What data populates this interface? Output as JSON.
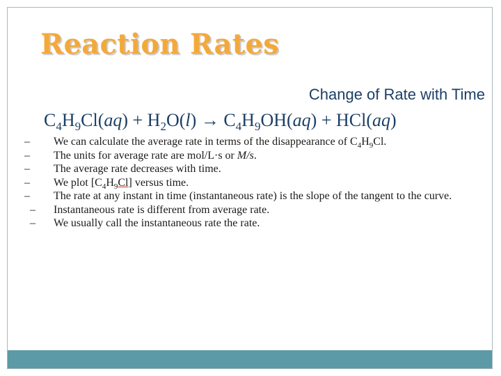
{
  "title": "Reaction Rates",
  "subtitle": "Change of Rate with Time",
  "equation": {
    "r_c": "C",
    "r_c_n": "4",
    "r_h": "H",
    "r_h_n": "9",
    "r_cl": "Cl(",
    "r_cl_st": "aq",
    "r_cl_end": ") + H",
    "w_n": "2",
    "w_o": "O(",
    "w_st": "l",
    "w_end": ") ",
    "arrow": "→",
    "p_c": " C",
    "p_c_n": "4",
    "p_h": "H",
    "p_h_n": "9",
    "p_oh": "OH(",
    "p_oh_st": "aq",
    "p_oh_end": ") + HCl(",
    "p_hcl_st": "aq",
    "p_hcl_end": ")"
  },
  "bullets": {
    "dash": "–",
    "b1_a": "We can calculate the average rate in terms of the disappearance of C",
    "b1_n4": "4",
    "b1_h": "H",
    "b1_n9": "9",
    "b1_end": "Cl.",
    "b2_a": "The units for average rate are mol/L",
    "b2_dot": "·",
    "b2_b": "s or ",
    "b2_it": "M/s",
    "b2_end": ".",
    "b3": "The average rate decreases with time.",
    "b4_a": "We plot [C",
    "b4_n4": "4",
    "b4_h": "H",
    "b4_n9": "9",
    "b4_b": "Cl]",
    "b4_end": " versus time.",
    "b5": "The rate at any instant in time (instantaneous rate) is the slope of the tangent to the curve.",
    "b6": "Instantaneous rate is different from average rate.",
    "b7": "We usually call the instantaneous rate the rate."
  }
}
